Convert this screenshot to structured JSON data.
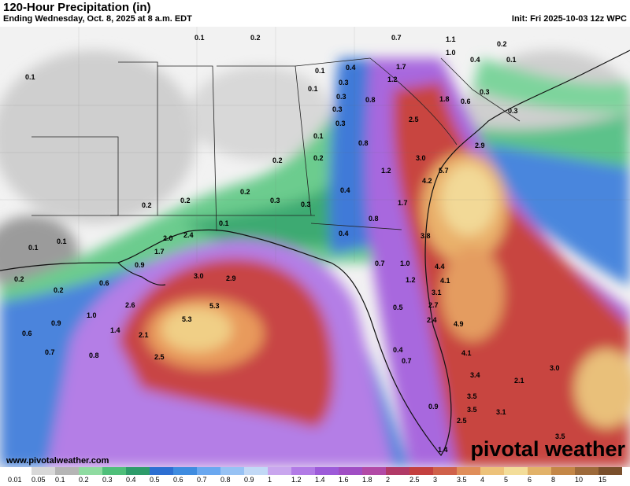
{
  "header": {
    "title": "120-Hour Precipitation (in)",
    "subtitle": "Ending Wednesday, Oct. 8, 2025 at 8 a.m. EDT",
    "init": "Init: Fri 2025-10-03 12z WPC"
  },
  "footer": {
    "site": "www.pivotalweather.com",
    "brand": "pivotal weather"
  },
  "legend": {
    "labels": [
      "0.01",
      "0.05",
      "0.1",
      "0.2",
      "0.3",
      "0.4",
      "0.5",
      "0.6",
      "0.7",
      "0.8",
      "0.9",
      "1",
      "1.2",
      "1.4",
      "1.6",
      "1.8",
      "2",
      "2.5",
      "3",
      "3.5",
      "4",
      "5",
      "6",
      "8",
      "10",
      "15"
    ],
    "colors": [
      "#ffffff",
      "#d8d8d8",
      "#b5b5b5",
      "#8fdba1",
      "#4fbf7a",
      "#2e9c6a",
      "#2d6fd2",
      "#3f8ce0",
      "#6aa8f0",
      "#97c2f4",
      "#c2d9f6",
      "#c9a6ee",
      "#b27be6",
      "#9d5bd9",
      "#a04ec4",
      "#b24aa6",
      "#b13a67",
      "#c4403f",
      "#d0614a",
      "#e08e5a",
      "#edc27a",
      "#f3dd99",
      "#e2b269",
      "#c48747",
      "#9d6a3a",
      "#7a4f2c"
    ]
  },
  "map_labels": [
    {
      "t": "0.1"
    },
    {
      "t": "0.2"
    },
    {
      "t": "0.7"
    },
    {
      "t": "1.1"
    },
    {
      "t": "0.2"
    },
    {
      "t": "0.1"
    },
    {
      "t": "1.0"
    },
    {
      "t": "0.4"
    },
    {
      "t": "0.1"
    },
    {
      "t": "1.7"
    },
    {
      "t": "0.1"
    },
    {
      "t": "0.4"
    },
    {
      "t": "1.2"
    },
    {
      "t": "0.3"
    },
    {
      "t": "0.1"
    },
    {
      "t": "0.3"
    },
    {
      "t": "1.8"
    },
    {
      "t": "0.6"
    },
    {
      "t": "0.3"
    },
    {
      "t": "0.3"
    },
    {
      "t": "0.8"
    },
    {
      "t": "0.3"
    },
    {
      "t": "2.5"
    },
    {
      "t": "0.3"
    },
    {
      "t": "0.1"
    },
    {
      "t": "0.8"
    },
    {
      "t": "2.9"
    },
    {
      "t": "0.2"
    },
    {
      "t": "0.2"
    },
    {
      "t": "3.0"
    },
    {
      "t": "5.7"
    },
    {
      "t": "1.2"
    },
    {
      "t": "4.2"
    },
    {
      "t": "0.2"
    },
    {
      "t": "0.4"
    },
    {
      "t": "0.3"
    },
    {
      "t": "0.3"
    },
    {
      "t": "0.2"
    },
    {
      "t": "1.7"
    },
    {
      "t": "0.2"
    },
    {
      "t": "0.8"
    },
    {
      "t": "0.1"
    },
    {
      "t": "2.0"
    },
    {
      "t": "2.4"
    },
    {
      "t": "0.4"
    },
    {
      "t": "3.8"
    },
    {
      "t": "0.1"
    },
    {
      "t": "0.1"
    },
    {
      "t": "1.7"
    },
    {
      "t": "0.7"
    },
    {
      "t": "1.0"
    },
    {
      "t": "4.4"
    },
    {
      "t": "0.9"
    },
    {
      "t": "3.0"
    },
    {
      "t": "2.9"
    },
    {
      "t": "1.2"
    },
    {
      "t": "4.1"
    },
    {
      "t": "0.2"
    },
    {
      "t": "0.6"
    },
    {
      "t": "3.1"
    },
    {
      "t": "0.2"
    },
    {
      "t": "2.6"
    },
    {
      "t": "5.3"
    },
    {
      "t": "2.7"
    },
    {
      "t": "1.0"
    },
    {
      "t": "5.3"
    },
    {
      "t": "0.5"
    },
    {
      "t": "2.4"
    },
    {
      "t": "4.9"
    },
    {
      "t": "0.9"
    },
    {
      "t": "1.4"
    },
    {
      "t": "2.1"
    },
    {
      "t": "0.6"
    },
    {
      "t": "0.7"
    },
    {
      "t": "0.8"
    },
    {
      "t": "2.5"
    },
    {
      "t": "0.4"
    },
    {
      "t": "4.1"
    },
    {
      "t": "0.7"
    },
    {
      "t": "3.0"
    },
    {
      "t": "3.4"
    },
    {
      "t": "2.1"
    },
    {
      "t": "3.5"
    },
    {
      "t": "0.9"
    },
    {
      "t": "3.5"
    },
    {
      "t": "3.1"
    },
    {
      "t": "2.5"
    },
    {
      "t": "3.5"
    },
    {
      "t": "1.4"
    }
  ]
}
